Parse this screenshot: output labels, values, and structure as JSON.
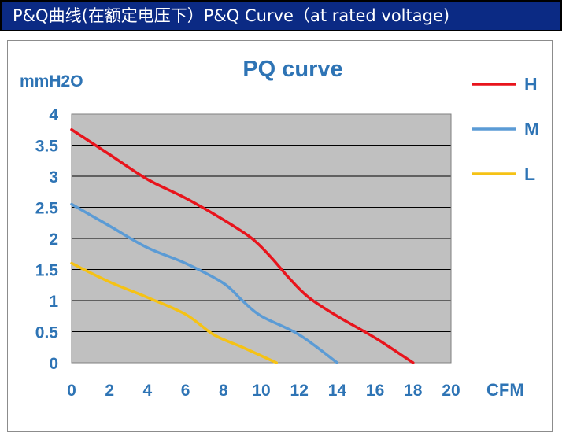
{
  "header": {
    "title": "P&Q曲线(在额定电压下）P&Q Curve（at rated voltage)"
  },
  "colors": {
    "header_bg": "#0b2a84",
    "plot_bg": "#c0c0c0",
    "axis_text": "#2e74b5",
    "H": "#e8141c",
    "M": "#5b9bd5",
    "L": "#f5c215"
  },
  "chart_data": {
    "type": "line",
    "title": "PQ curve",
    "xlabel": "CFM",
    "ylabel": "mmH2O",
    "xlim": [
      0,
      20
    ],
    "ylim": [
      0,
      4
    ],
    "x_ticks": [
      "0",
      "2",
      "4",
      "6",
      "8",
      "10",
      "12",
      "14",
      "16",
      "18",
      "20"
    ],
    "y_ticks": [
      "0",
      "0.5",
      "1",
      "1.5",
      "2",
      "2.5",
      "3",
      "3.5",
      "4"
    ],
    "grid": "horizontal",
    "legend_position": "right",
    "series": [
      {
        "name": "H",
        "color": "#e8141c",
        "points": [
          [
            0,
            3.75
          ],
          [
            2,
            3.35
          ],
          [
            4,
            2.95
          ],
          [
            6,
            2.65
          ],
          [
            8,
            2.3
          ],
          [
            9.5,
            2.0
          ],
          [
            10.5,
            1.7
          ],
          [
            11.5,
            1.35
          ],
          [
            12.5,
            1.05
          ],
          [
            14,
            0.75
          ],
          [
            16,
            0.4
          ],
          [
            18,
            0.0
          ]
        ]
      },
      {
        "name": "M",
        "color": "#5b9bd5",
        "points": [
          [
            0,
            2.55
          ],
          [
            2,
            2.2
          ],
          [
            4,
            1.85
          ],
          [
            6,
            1.6
          ],
          [
            8,
            1.28
          ],
          [
            9,
            1.0
          ],
          [
            10,
            0.75
          ],
          [
            12,
            0.45
          ],
          [
            14,
            0.0
          ]
        ]
      },
      {
        "name": "L",
        "color": "#f5c215",
        "points": [
          [
            0,
            1.6
          ],
          [
            2,
            1.3
          ],
          [
            4,
            1.05
          ],
          [
            6,
            0.78
          ],
          [
            7.5,
            0.45
          ],
          [
            9,
            0.25
          ],
          [
            10.8,
            0.0
          ]
        ]
      }
    ]
  }
}
